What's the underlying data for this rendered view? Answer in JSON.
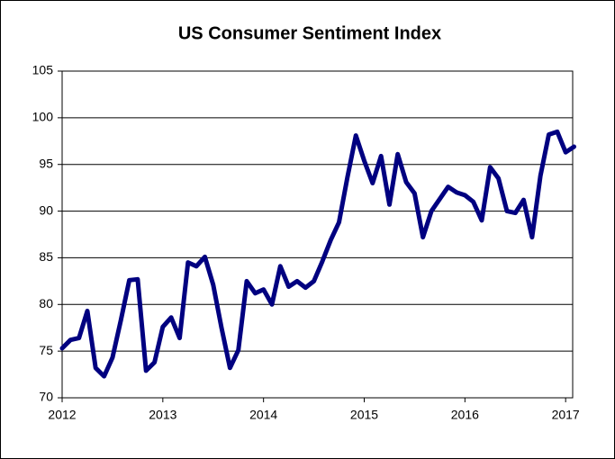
{
  "chart_data": {
    "type": "line",
    "title": "US Consumer Sentiment Index",
    "x": [
      2012,
      2012.083,
      2012.167,
      2012.25,
      2012.333,
      2012.417,
      2012.5,
      2012.583,
      2012.667,
      2012.75,
      2012.833,
      2012.917,
      2013,
      2013.083,
      2013.167,
      2013.25,
      2013.333,
      2013.417,
      2013.5,
      2013.583,
      2013.667,
      2013.75,
      2013.833,
      2013.917,
      2014,
      2014.083,
      2014.167,
      2014.25,
      2014.333,
      2014.417,
      2014.5,
      2014.583,
      2014.667,
      2014.75,
      2014.833,
      2014.917,
      2015,
      2015.083,
      2015.167,
      2015.25,
      2015.333,
      2015.417,
      2015.5,
      2015.583,
      2015.667,
      2015.75,
      2015.833,
      2015.917,
      2016,
      2016.083,
      2016.167,
      2016.25,
      2016.333,
      2016.417,
      2016.5,
      2016.583,
      2016.667,
      2016.75,
      2016.833,
      2016.917,
      2017,
      2017.083
    ],
    "series": [
      {
        "name": "US Consumer Sentiment Index",
        "color": "#000080",
        "values": [
          75.3,
          76.2,
          76.4,
          79.3,
          73.2,
          72.3,
          74.3,
          78.3,
          82.6,
          82.7,
          72.9,
          73.8,
          77.6,
          78.6,
          76.4,
          84.5,
          84.1,
          85.1,
          82.1,
          77.5,
          73.2,
          75.1,
          82.5,
          81.2,
          81.6,
          80.0,
          84.1,
          81.9,
          82.5,
          81.8,
          82.5,
          84.6,
          86.9,
          88.8,
          93.6,
          98.1,
          95.4,
          93.0,
          95.9,
          90.7,
          96.1,
          93.1,
          91.9,
          87.2,
          90.0,
          91.3,
          92.6,
          92.0,
          91.7,
          91.0,
          89.0,
          94.7,
          93.5,
          90.0,
          89.8,
          91.2,
          87.2,
          93.8,
          98.2,
          98.5,
          96.3,
          96.9
        ]
      }
    ],
    "xlim": [
      2012,
      2017.07
    ],
    "xticks": [
      2012,
      2013,
      2014,
      2015,
      2016,
      2017
    ],
    "ylim": [
      70,
      105
    ],
    "yticks": [
      70,
      75,
      80,
      85,
      90,
      95,
      100,
      105
    ],
    "grid": true
  }
}
